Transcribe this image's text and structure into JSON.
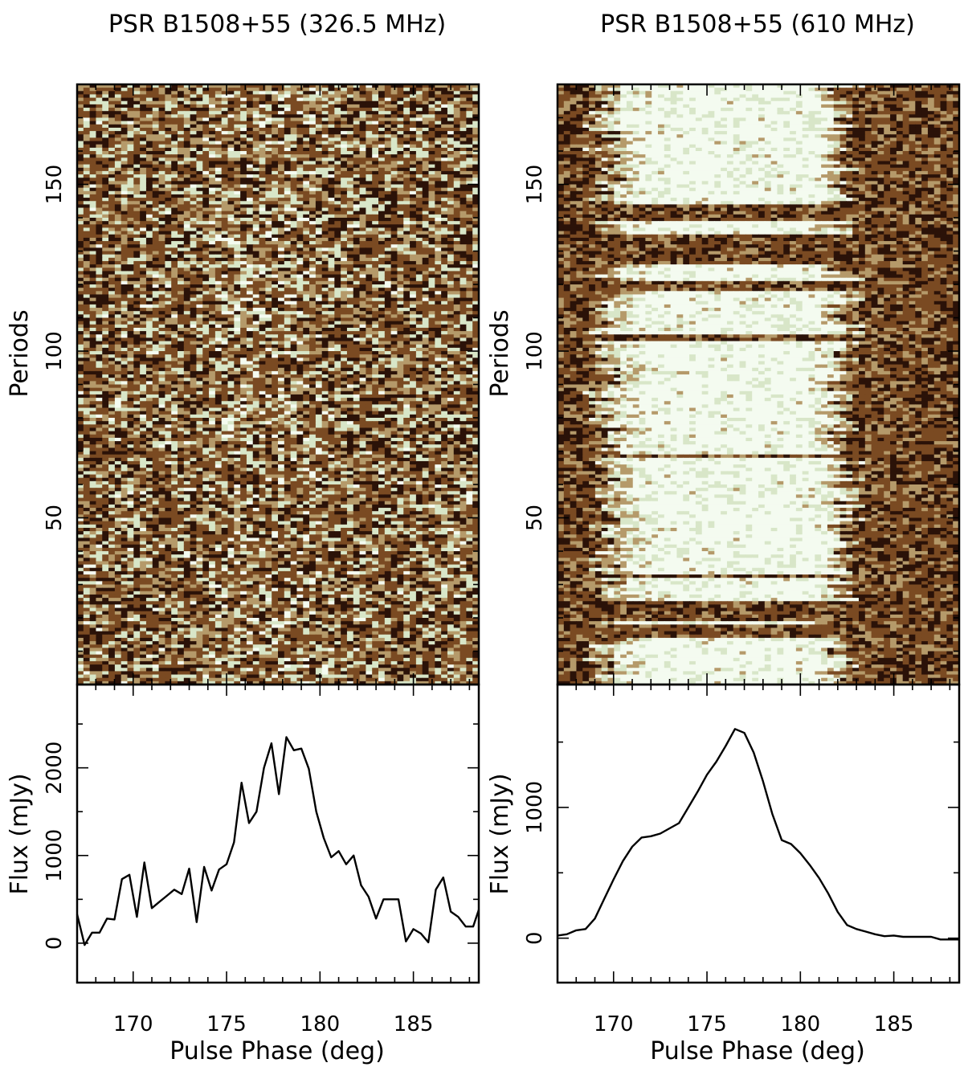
{
  "chart_data": [
    {
      "type": "heatmap",
      "title": "PSR B1508+55 (326.5 MHz)",
      "ylabel": "Periods",
      "xlim": [
        167,
        188.5
      ],
      "ylim": [
        0,
        180
      ],
      "yticks": [
        50,
        100,
        150
      ],
      "colormap": "brown-to-white",
      "colors": [
        "#2b1208",
        "#7a4a22",
        "#b59a6a",
        "#d8e6c8",
        "#f4fbf0"
      ],
      "description_mode": "noisy single pulses, weak enhancement near 175-180 deg"
    },
    {
      "type": "line",
      "xlabel": "Pulse Phase (deg)",
      "ylabel": "Flux (mJy)",
      "xlim": [
        167,
        188.5
      ],
      "ylim": [
        -450,
        2950
      ],
      "xticks": [
        170,
        175,
        180,
        185
      ],
      "yticks": [
        0,
        1000,
        2000
      ],
      "x": [
        167.0,
        167.4,
        167.8,
        168.2,
        168.6,
        169.0,
        169.4,
        169.8,
        170.2,
        170.6,
        171.0,
        171.4,
        171.8,
        172.2,
        172.6,
        173.0,
        173.4,
        173.8,
        174.2,
        174.6,
        175.0,
        175.4,
        175.8,
        176.2,
        176.6,
        177.0,
        177.4,
        177.8,
        178.2,
        178.6,
        179.0,
        179.4,
        179.8,
        180.2,
        180.6,
        181.0,
        181.4,
        181.8,
        182.2,
        182.6,
        183.0,
        183.4,
        183.8,
        184.2,
        184.6,
        185.0,
        185.4,
        185.8,
        186.2,
        186.6,
        187.0,
        187.4,
        187.8,
        188.2,
        188.5
      ],
      "values": [
        330,
        -20,
        120,
        120,
        280,
        270,
        730,
        780,
        300,
        920,
        400,
        470,
        540,
        610,
        560,
        850,
        240,
        870,
        600,
        840,
        900,
        1150,
        1830,
        1370,
        1500,
        2000,
        2280,
        1700,
        2350,
        2200,
        2220,
        1990,
        1500,
        1200,
        980,
        1050,
        900,
        1000,
        660,
        530,
        280,
        500,
        500,
        500,
        20,
        160,
        110,
        10,
        610,
        750,
        360,
        300,
        190,
        190,
        380
      ],
      "series": [
        {
          "name": "",
          "color": "#000000"
        }
      ]
    },
    {
      "type": "heatmap",
      "title": "PSR B1508+55 (610 MHz)",
      "ylabel": "Periods",
      "xlim": [
        167,
        188.5
      ],
      "ylim": [
        0,
        180
      ],
      "yticks": [
        50,
        100,
        150
      ],
      "colormap": "brown-to-white",
      "colors": [
        "#2b1208",
        "#7a4a22",
        "#b59a6a",
        "#d8e6c8",
        "#f4fbf0"
      ],
      "bright_region_deg": [
        169.5,
        182.0
      ],
      "null_periods": [
        [
          15,
          18
        ],
        [
          20,
          25
        ],
        [
          33,
          33
        ],
        [
          69,
          69
        ],
        [
          104,
          105
        ],
        [
          119,
          121
        ],
        [
          127,
          135
        ],
        [
          140,
          144
        ]
      ]
    },
    {
      "type": "line",
      "xlabel": "Pulse Phase (deg)",
      "ylabel": "Flux (mJy)",
      "xlim": [
        167,
        188.5
      ],
      "ylim": [
        -340,
        1940
      ],
      "xticks": [
        170,
        175,
        180,
        185
      ],
      "yticks": [
        0,
        1000
      ],
      "x": [
        167.0,
        167.5,
        168.0,
        168.5,
        169.0,
        169.5,
        170.0,
        170.5,
        171.0,
        171.5,
        172.0,
        172.5,
        173.0,
        173.5,
        174.0,
        174.5,
        175.0,
        175.5,
        176.0,
        176.5,
        177.0,
        177.5,
        178.0,
        178.5,
        179.0,
        179.5,
        180.0,
        180.5,
        181.0,
        181.5,
        182.0,
        182.5,
        183.0,
        183.5,
        184.0,
        184.5,
        185.0,
        185.5,
        186.0,
        186.5,
        187.0,
        187.5,
        188.0,
        188.5
      ],
      "values": [
        20,
        30,
        60,
        70,
        150,
        300,
        450,
        590,
        700,
        770,
        780,
        800,
        840,
        880,
        1000,
        1120,
        1250,
        1350,
        1470,
        1600,
        1570,
        1420,
        1200,
        950,
        750,
        720,
        650,
        560,
        460,
        340,
        200,
        100,
        70,
        50,
        30,
        15,
        20,
        10,
        10,
        10,
        10,
        -10,
        -10,
        -10
      ],
      "series": [
        {
          "name": "",
          "color": "#000000"
        }
      ]
    }
  ],
  "labels": {
    "periods": "Periods",
    "flux": "Flux (mJy)",
    "phase": "Pulse Phase (deg)"
  }
}
